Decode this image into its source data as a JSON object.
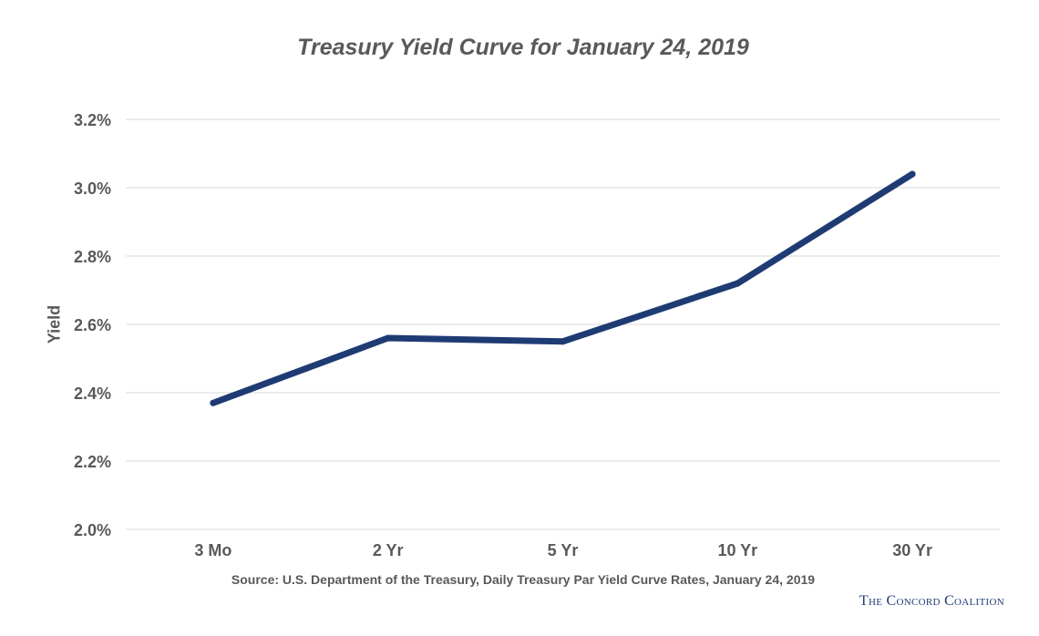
{
  "chart_data": {
    "type": "line",
    "title": "Treasury Yield Curve for January 24, 2019",
    "xlabel": "",
    "ylabel": "Yield",
    "categories": [
      "3 Mo",
      "2 Yr",
      "5 Yr",
      "10 Yr",
      "30 Yr"
    ],
    "series": [
      {
        "name": "Yield",
        "values": [
          2.37,
          2.56,
          2.55,
          2.72,
          3.04
        ]
      }
    ],
    "ylim": [
      2.0,
      3.2
    ],
    "yticks": [
      2.0,
      2.2,
      2.4,
      2.6,
      2.8,
      3.0,
      3.2
    ],
    "ytick_labels": [
      "2.0%",
      "2.2%",
      "2.4%",
      "2.6%",
      "2.8%",
      "3.0%",
      "3.2%"
    ],
    "grid": true,
    "line_color": "#1f3b73",
    "grid_color": "#d9d9d9",
    "text_color": "#595959"
  },
  "source": "Source: U.S. Department of the Treasury, Daily Treasury Par Yield Curve Rates, January 24, 2019",
  "brand": "The Concord Coalition"
}
